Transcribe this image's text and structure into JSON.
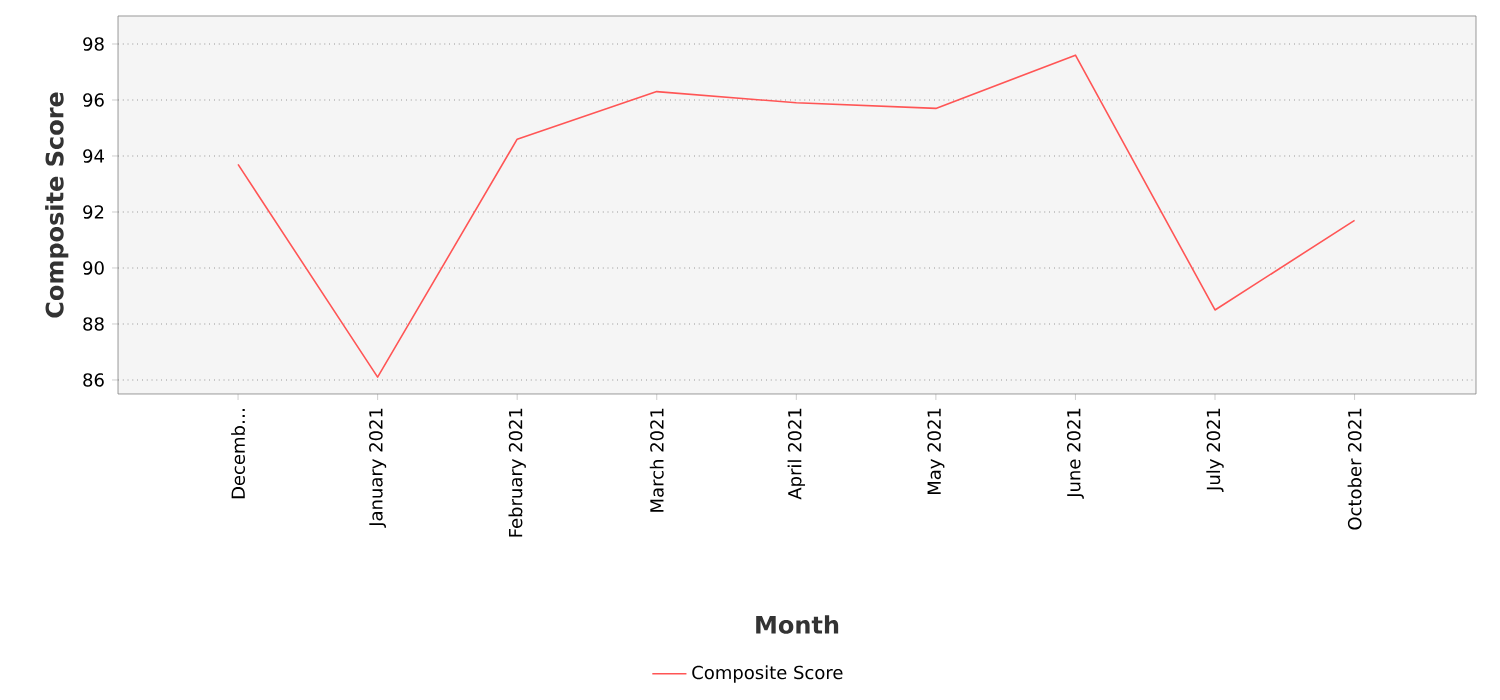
{
  "chart_data": {
    "type": "line",
    "xlabel": "Month",
    "ylabel": "Composite Score",
    "categories": [
      "Decemb…",
      "January 2021",
      "February 2021",
      "March 2021",
      "April 2021",
      "May 2021",
      "June 2021",
      "July 2021",
      "October 2021"
    ],
    "series": [
      {
        "name": "Composite Score",
        "color": "#ff5555",
        "values": [
          93.7,
          86.1,
          94.6,
          96.3,
          95.9,
          95.7,
          97.6,
          88.5,
          91.7
        ]
      }
    ],
    "ylim": [
      85.5,
      99
    ],
    "yticks": [
      86,
      88,
      90,
      92,
      94,
      96,
      98
    ],
    "grid": "y",
    "legend": "bottom",
    "marker": "none",
    "line_style": "solid"
  }
}
